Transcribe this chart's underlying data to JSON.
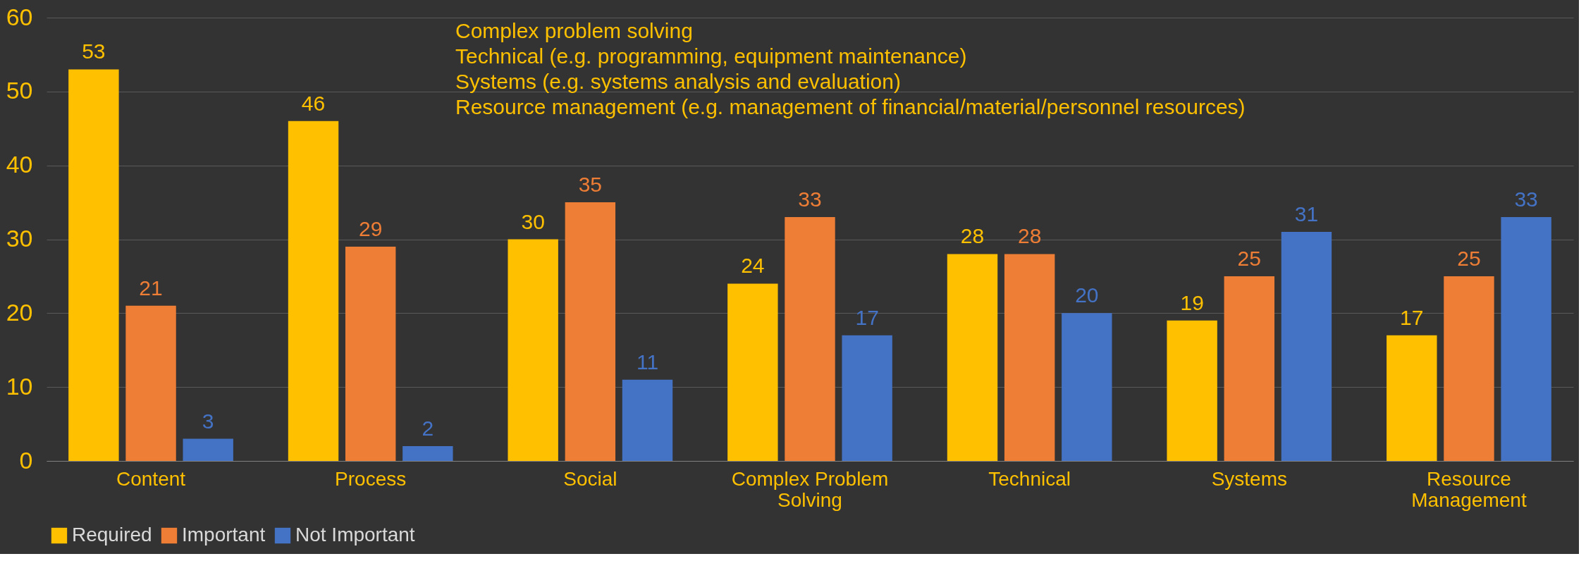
{
  "chart_data": {
    "type": "bar",
    "categories": [
      "Content",
      "Process",
      "Social",
      "Complex Problem Solving",
      "Technical",
      "Systems",
      "Resource Management"
    ],
    "series": [
      {
        "name": "Required",
        "color": "#ffc000",
        "values": [
          53,
          46,
          30,
          24,
          28,
          19,
          17
        ]
      },
      {
        "name": "Important",
        "color": "#ee7d35",
        "values": [
          21,
          29,
          35,
          33,
          28,
          25,
          25
        ]
      },
      {
        "name": "Not Important",
        "color": "#4472c4",
        "values": [
          3,
          2,
          11,
          17,
          20,
          31,
          33
        ]
      }
    ],
    "ylim": [
      0,
      60
    ],
    "yticks": [
      0,
      10,
      20,
      30,
      40,
      50,
      60
    ],
    "grid": "y",
    "legend": "bottom",
    "data_labels": true,
    "annotations": [
      "Complex problem solving",
      "Technical (e.g. programming, equipment maintenance)",
      "Systems (e.g. systems analysis and evaluation)",
      "Resource management (e.g. management of financial/material/personnel resources)"
    ]
  }
}
